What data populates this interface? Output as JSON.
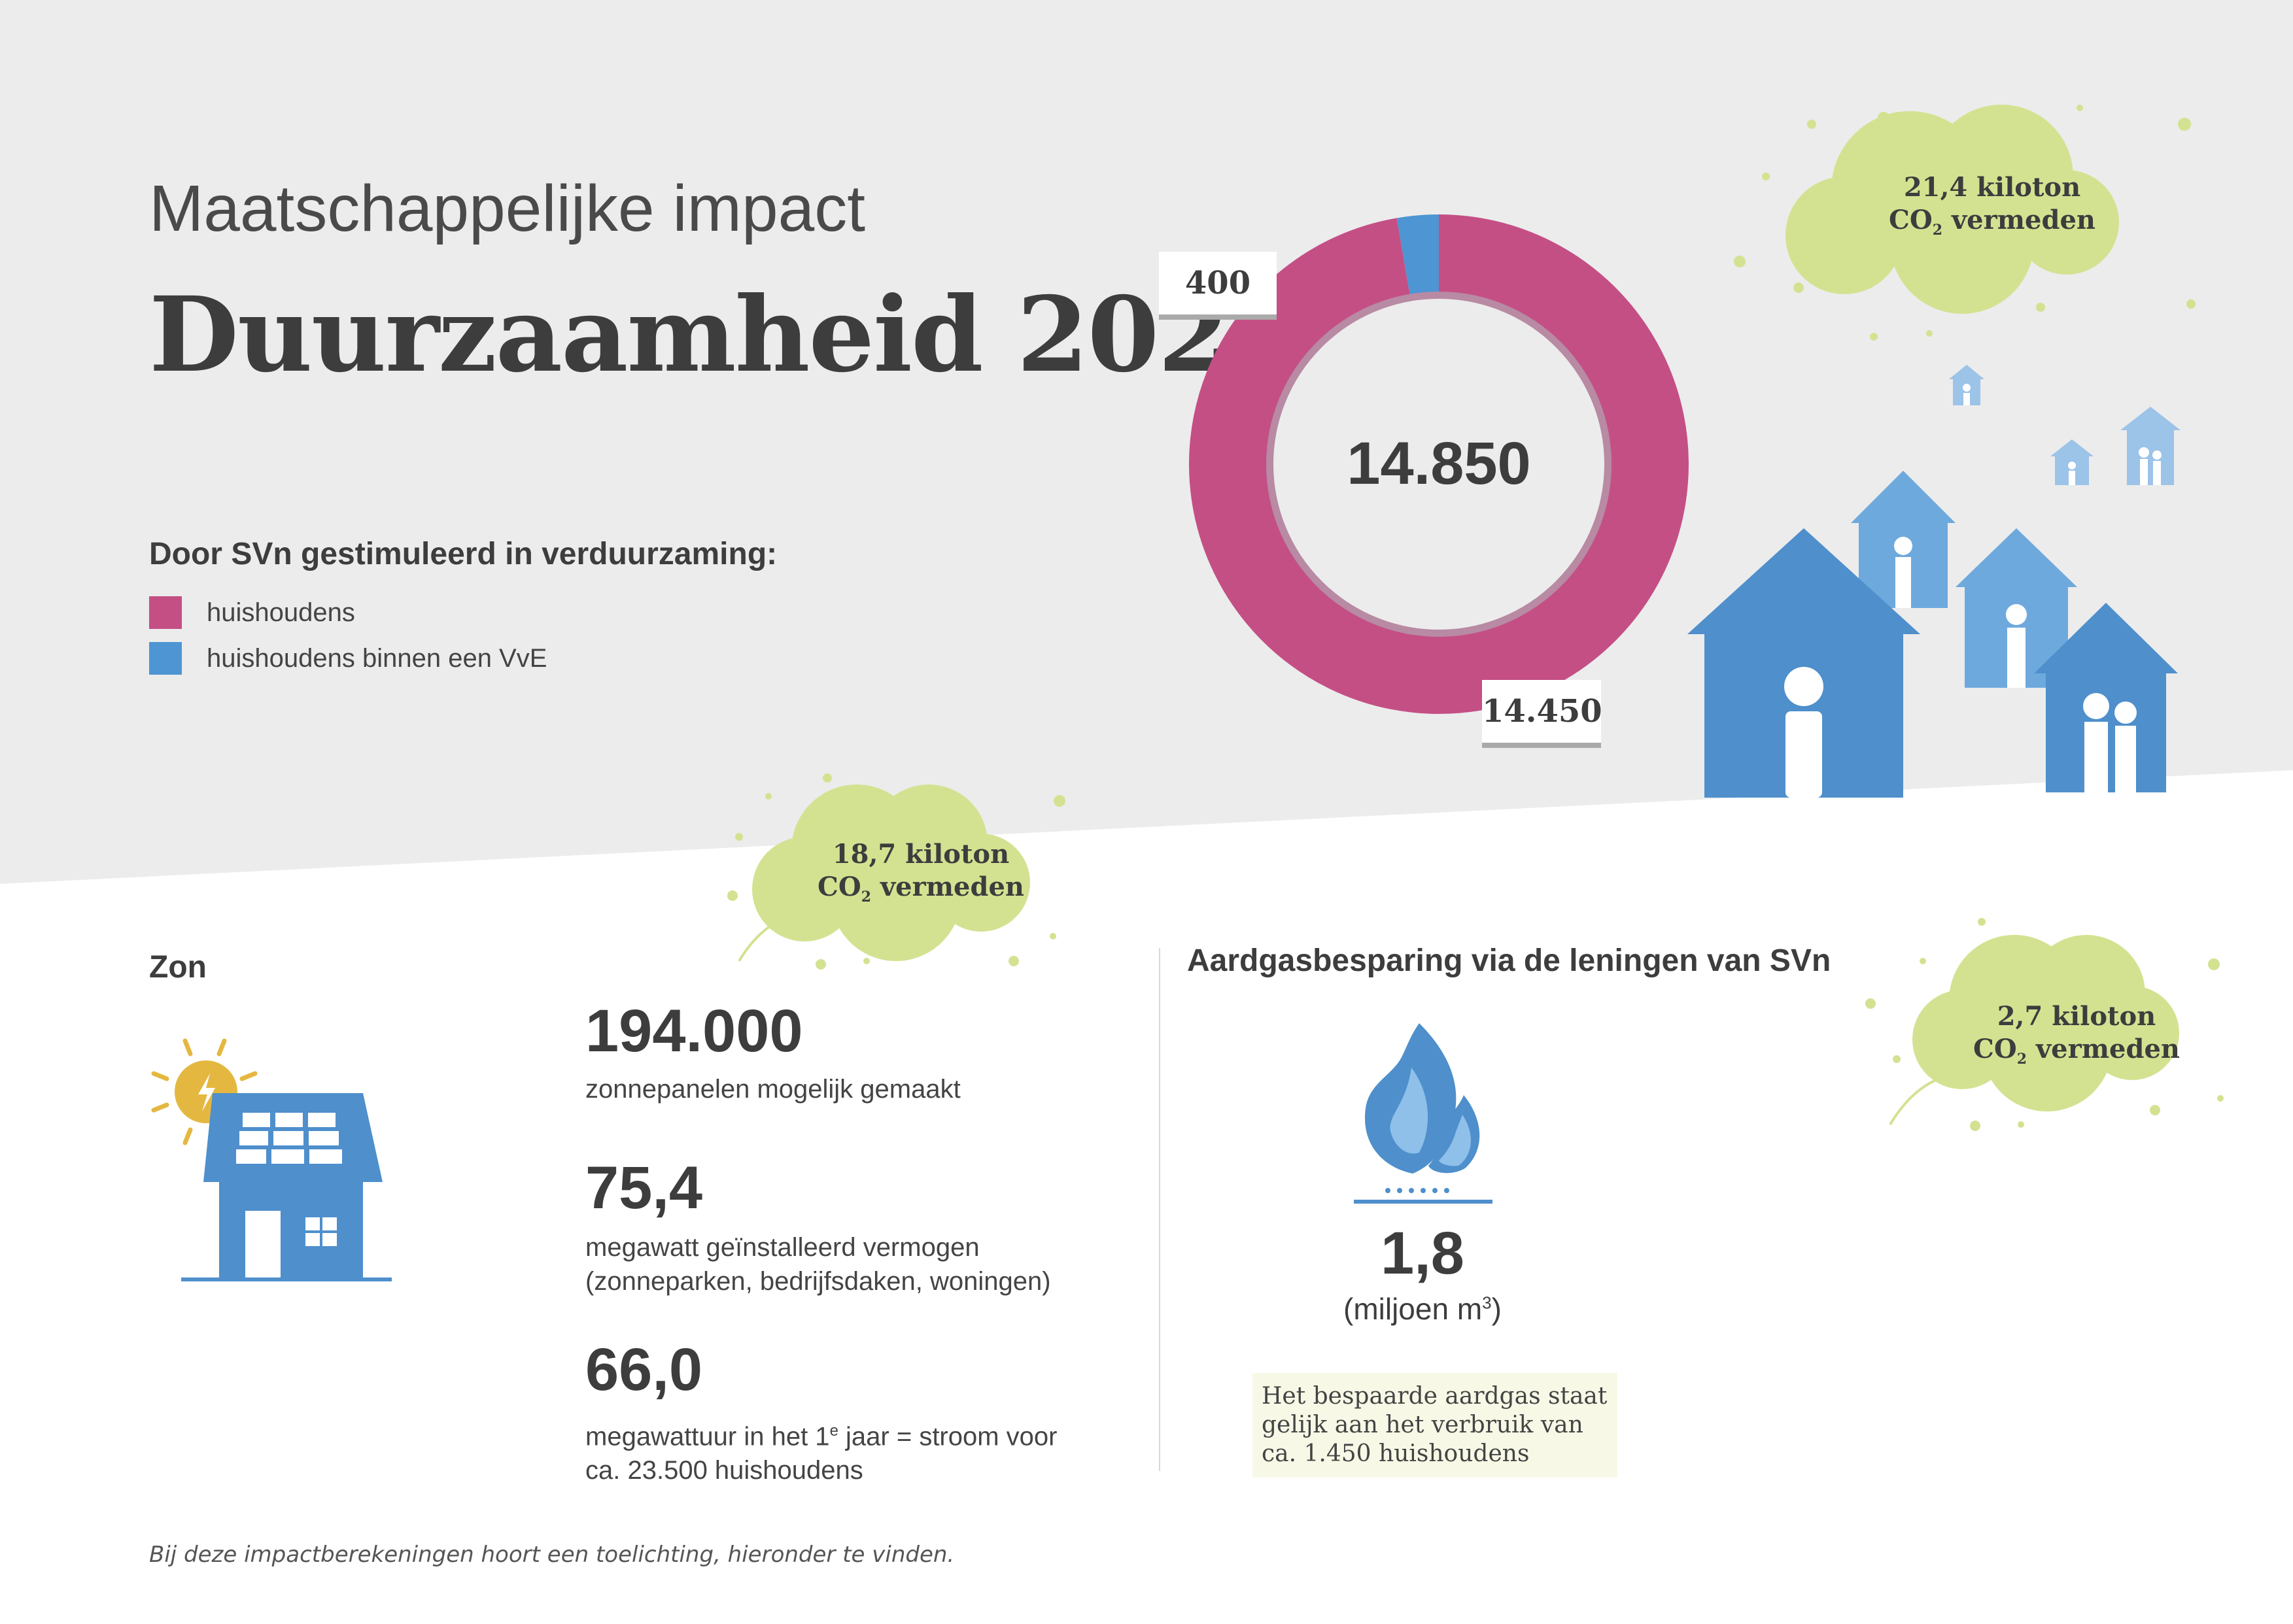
{
  "header": {
    "subtitle": "Maatschappelijke impact",
    "title": "Duurzaamheid 2022"
  },
  "legend": {
    "heading": "Door SVn gestimuleerd in verduurzaming:",
    "items": [
      {
        "label": "huishoudens",
        "color": "#c44f85"
      },
      {
        "label": "huishoudens binnen een VvE",
        "color": "#4e95d3"
      }
    ]
  },
  "donut": {
    "total_label": "14.850",
    "label_vve": "400",
    "label_households": "14.450"
  },
  "chart_data": {
    "type": "pie",
    "categories": [
      "huishoudens",
      "huishoudens binnen een VvE"
    ],
    "values": [
      14450,
      400
    ],
    "colors": [
      "#c44f85",
      "#4e95d3"
    ],
    "center_label": "14.850"
  },
  "clouds": {
    "top": {
      "line1": "21,4 kiloton",
      "co": "CO",
      "sub": "2",
      "rest": " vermeden"
    },
    "zon": {
      "line1": "18,7 kiloton",
      "co": "CO",
      "sub": "2",
      "rest": " vermeden"
    },
    "gas": {
      "line1": "2,7 kiloton",
      "co": "CO",
      "sub": "2",
      "rest": " vermeden"
    }
  },
  "zon": {
    "title": "Zon",
    "stats": [
      {
        "value": "194.000",
        "desc1": "zonnepanelen mogelijk gemaakt"
      },
      {
        "value": "75,4",
        "desc1": "megawatt geïnstalleerd vermogen",
        "desc2": "(zonneparken, bedrijfsdaken, woningen)"
      },
      {
        "value": "66,0",
        "desc1a": "megawattuur in het 1",
        "desc1sup": "e",
        "desc1b": " jaar = stroom voor",
        "desc2": "ca. 23.500 huishoudens"
      }
    ]
  },
  "gas": {
    "title": "Aardgasbesparing via de leningen van SVn",
    "value": "1,8",
    "unit_a": "(miljoen m",
    "unit_sup": "3",
    "unit_b": ")",
    "note": [
      "Het bespaarde aardgas staat",
      "gelijk aan het verbruik van",
      "ca. 1.450 huishoudens"
    ]
  },
  "footnote": "Bij deze impactberekeningen hoort een toelichting, hieronder te vinden."
}
